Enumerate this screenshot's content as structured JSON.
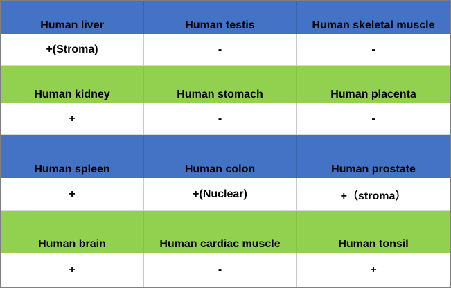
{
  "rows": [
    {
      "color": "#4472c4",
      "tissues": [
        "Human liver",
        "Human testis",
        "Human skeletal muscle"
      ],
      "values": [
        "+(Stroma)",
        "-",
        "-"
      ]
    },
    {
      "color": "#92d050",
      "tissues": [
        "Human kidney",
        "Human stomach",
        "Human placenta"
      ],
      "values": [
        "+",
        "-",
        "-"
      ]
    },
    {
      "color": "#4472c4",
      "tissues": [
        "Human spleen",
        "Human colon",
        "Human prostate"
      ],
      "values": [
        "+",
        "+(Nuclear)",
        "+（stroma）"
      ]
    },
    {
      "color": "#92d050",
      "tissues": [
        "Human brain",
        "Human cardiac muscle",
        "Human tonsil"
      ],
      "values": [
        "+",
        "-",
        "+"
      ]
    }
  ]
}
